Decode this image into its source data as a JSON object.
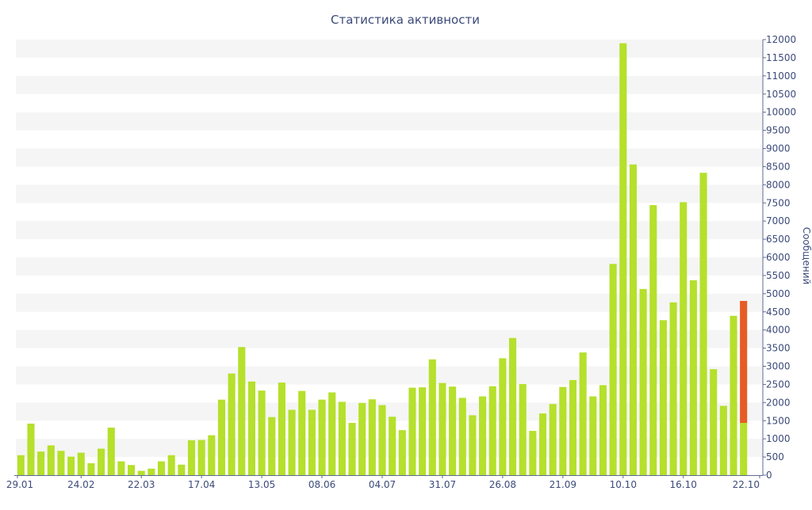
{
  "chart_data": {
    "type": "bar",
    "title": "Статистика активности",
    "ylabel": "Сообщений",
    "ylim": [
      0,
      12000
    ],
    "y_tick_step": 500,
    "y_axis_position": "right",
    "grid": "horizontal bands",
    "x_tick_labels": [
      "29.01",
      "24.02",
      "22.03",
      "17.04",
      "13.05",
      "08.06",
      "04.07",
      "31.07",
      "26.08",
      "21.09",
      "10.10",
      "16.10",
      "22.10"
    ],
    "x_tick_label_bar_index": [
      0,
      6,
      12,
      18,
      24,
      30,
      36,
      42,
      48,
      54,
      60,
      66,
      72
    ],
    "series": [
      {
        "values": [
          550,
          1420,
          650,
          820,
          670,
          510,
          620,
          330,
          730,
          1310,
          380,
          280,
          120,
          180,
          380,
          550,
          290,
          960,
          970,
          1100,
          2080,
          2800,
          3530,
          2580,
          2330,
          1600,
          2550,
          1800,
          2320,
          1800,
          2080,
          2280,
          2020,
          1440,
          1990,
          2090,
          1930,
          1610,
          1240,
          2410,
          2420,
          3190,
          2540,
          2440,
          2130,
          1650,
          2170,
          2450,
          3220,
          3780,
          2510,
          1220,
          1700,
          1960,
          2430,
          2620,
          3380,
          2170,
          2480,
          5820,
          11900,
          8560,
          5130,
          7440,
          4270,
          4760,
          7520,
          5370,
          8330,
          2920,
          1910,
          4390,
          1440
        ],
        "colors": {
          "bar": "#b5e02c",
          "highlight": "#e55d24"
        }
      }
    ],
    "highlight": {
      "bar_index": 72,
      "value": 4800,
      "from": 1440
    }
  }
}
